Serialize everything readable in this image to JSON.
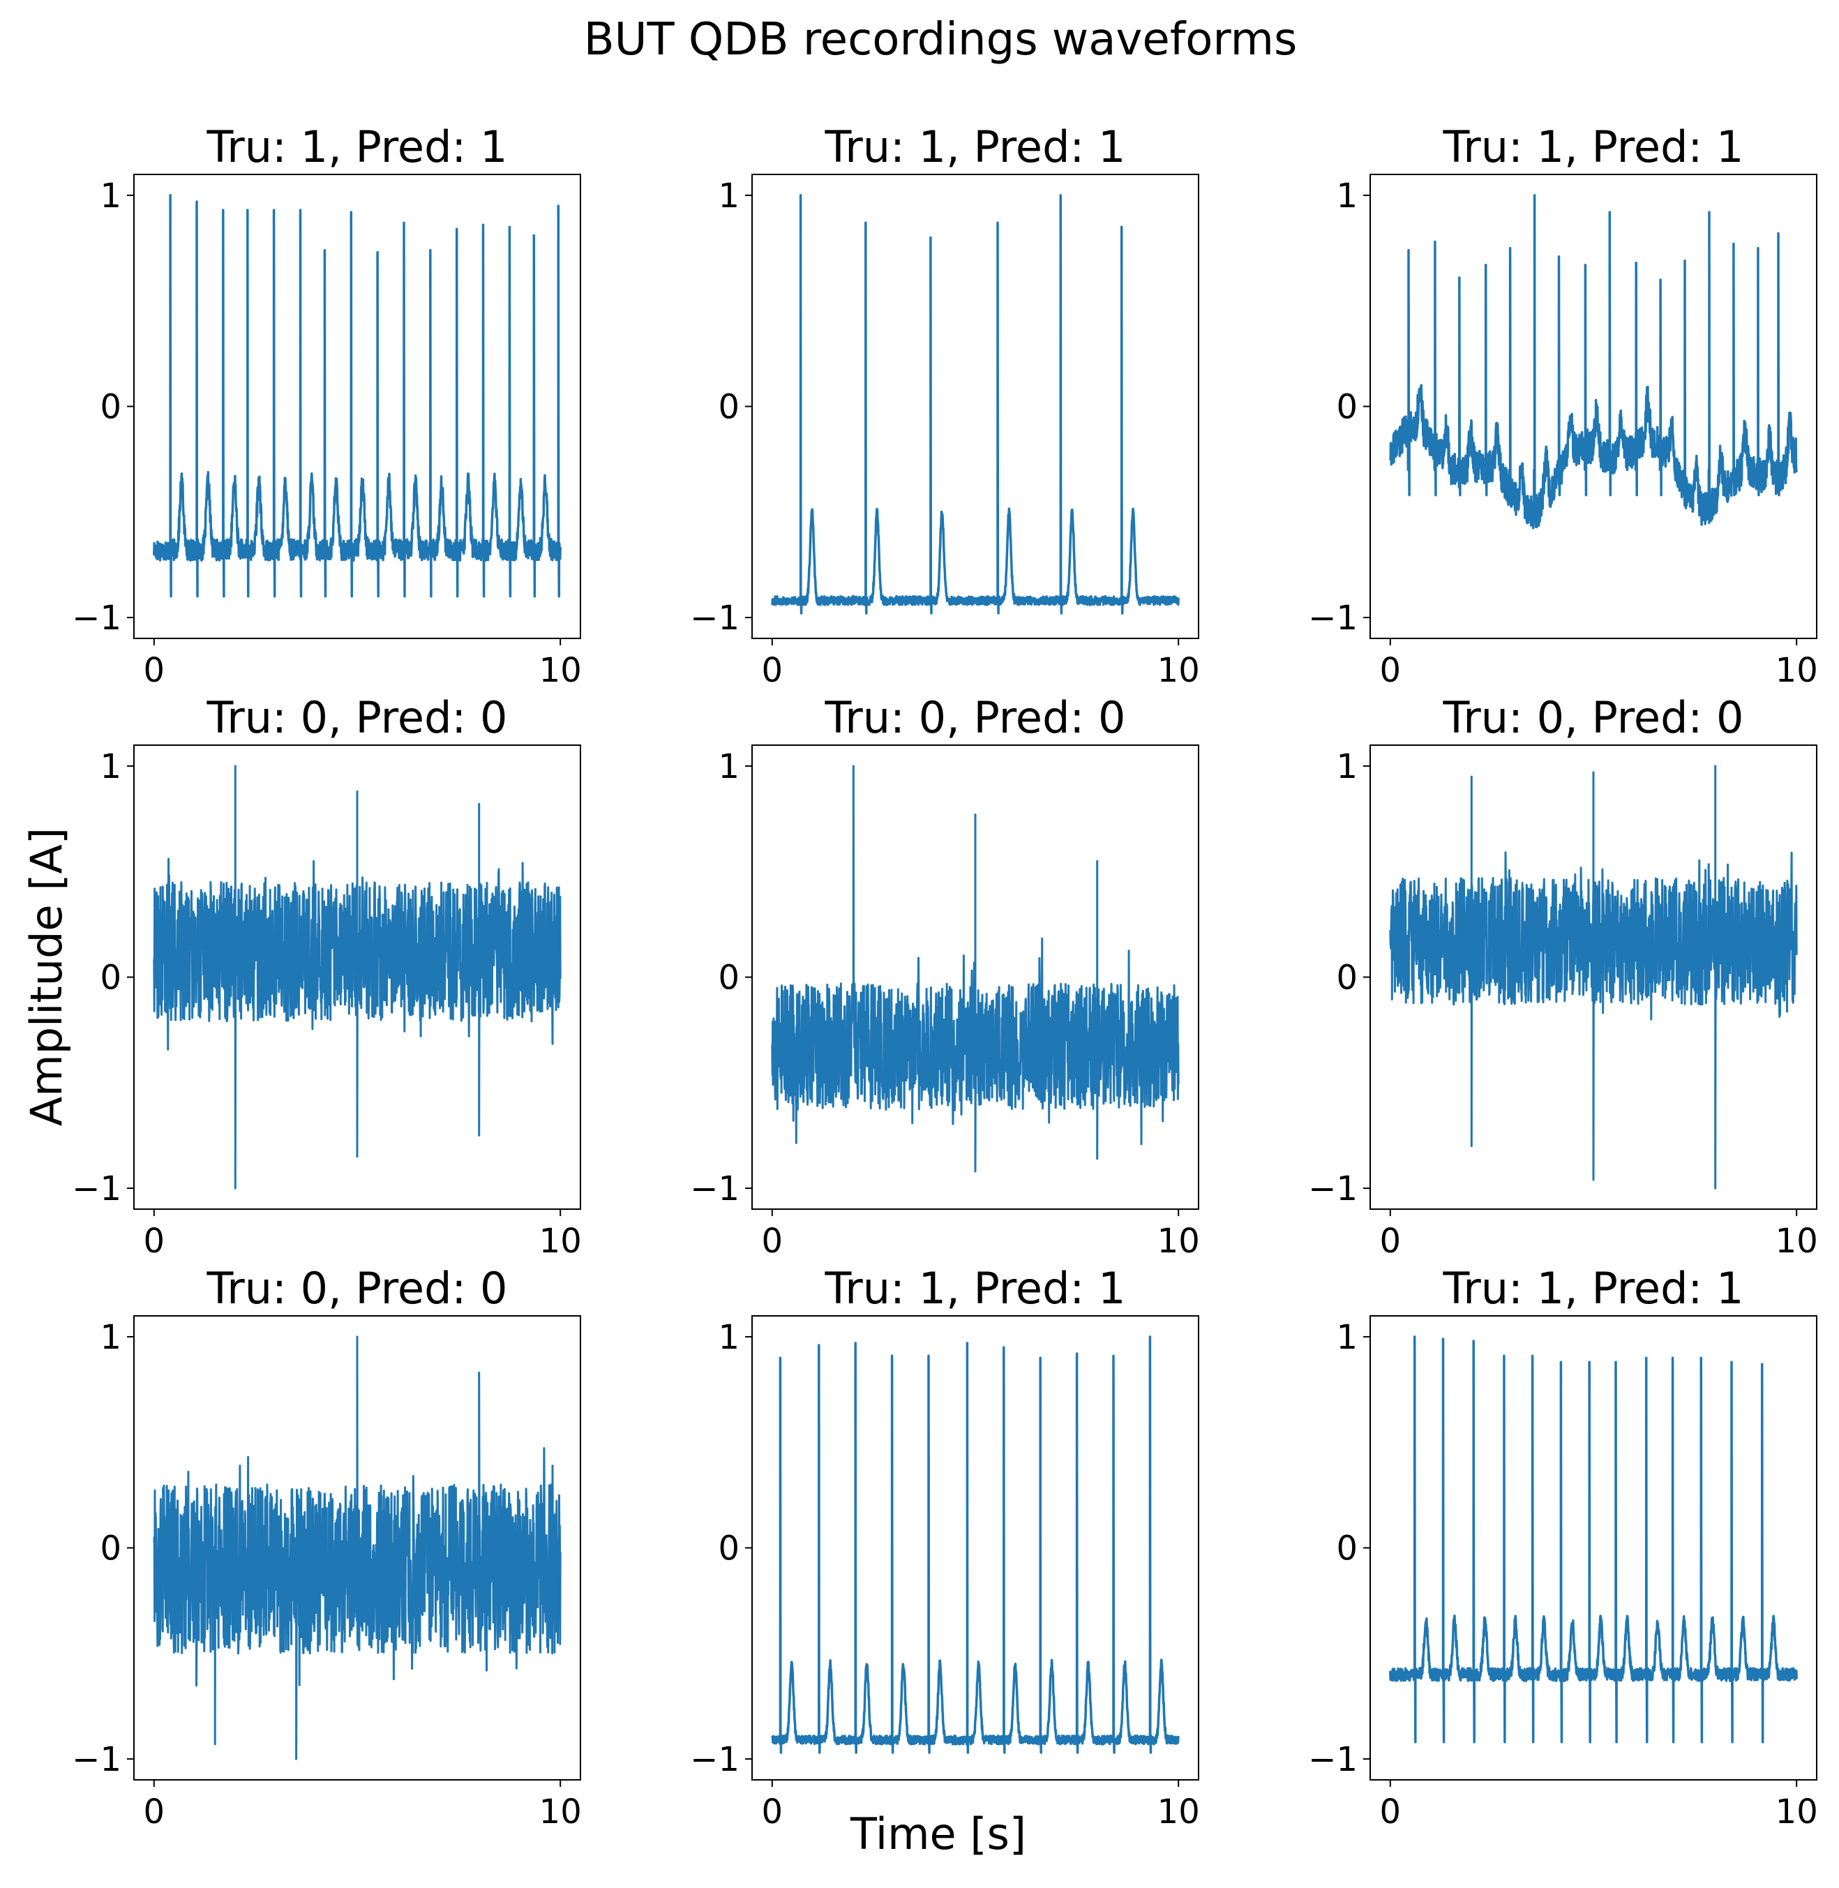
{
  "title": "BUT QDB recordings waveforms",
  "xlabel": "Time [s]",
  "ylabel": "Amplitude [A]",
  "line_color": "#1f77b4",
  "chart_data": [
    {
      "type": "line",
      "title": "Tru: 1, Pred: 1",
      "x_ticks": [
        "0",
        "10"
      ],
      "y_ticks": [
        "1",
        "0",
        "−1"
      ],
      "xlim": [
        0,
        10
      ],
      "ylim": [
        -1,
        1
      ],
      "kind": "ecg",
      "baseline": -0.68,
      "noise": 0.05,
      "peak_times": [
        0.4,
        1.05,
        1.7,
        2.3,
        2.95,
        3.6,
        4.2,
        4.85,
        5.5,
        6.15,
        6.8,
        7.45,
        8.1,
        8.75,
        9.35,
        9.95
      ],
      "peak_heights": [
        1.0,
        0.97,
        0.93,
        0.93,
        0.93,
        0.93,
        0.74,
        0.92,
        0.73,
        0.87,
        0.74,
        0.84,
        0.86,
        0.85,
        0.81,
        0.95
      ],
      "t_wave": 0.32,
      "s_depth": 0.22
    },
    {
      "type": "line",
      "title": "Tru: 1, Pred: 1",
      "x_ticks": [
        "0",
        "10"
      ],
      "y_ticks": [
        "1",
        "0",
        "−1"
      ],
      "xlim": [
        0,
        10
      ],
      "ylim": [
        -1,
        1
      ],
      "kind": "ecg",
      "baseline": -0.92,
      "noise": 0.02,
      "peak_times": [
        0.7,
        2.3,
        3.9,
        5.55,
        7.1,
        8.6
      ],
      "peak_heights": [
        1.0,
        0.87,
        0.8,
        0.87,
        1.0,
        0.85
      ],
      "t_wave": 0.42,
      "s_depth": 0.06
    },
    {
      "type": "line",
      "title": "Tru: 1, Pred: 1",
      "x_ticks": [
        "0",
        "10"
      ],
      "y_ticks": [
        "1",
        "0",
        "−1"
      ],
      "xlim": [
        0,
        10
      ],
      "ylim": [
        -1,
        1
      ],
      "kind": "ecg",
      "baseline": -0.3,
      "noise": 0.08,
      "wander": 0.13,
      "peak_times": [
        0.45,
        1.1,
        1.7,
        2.35,
        2.95,
        3.55,
        4.15,
        4.8,
        5.4,
        6.05,
        6.65,
        7.25,
        7.85,
        8.45,
        9.05,
        9.55
      ],
      "peak_heights": [
        0.74,
        0.78,
        0.61,
        0.67,
        0.75,
        1.0,
        0.71,
        0.67,
        0.92,
        0.68,
        0.6,
        0.69,
        0.92,
        0.77,
        0.75,
        0.82
      ],
      "t_wave": 0.18,
      "s_depth": 0.12
    },
    {
      "type": "line",
      "title": "Tru: 0, Pred: 0",
      "x_ticks": [
        "0",
        "10"
      ],
      "y_ticks": [
        "1",
        "0",
        "−1"
      ],
      "xlim": [
        0,
        10
      ],
      "ylim": [
        -1,
        1
      ],
      "kind": "noise",
      "center": 0.12,
      "half_range": 0.33,
      "spikes": [
        [
          2.0,
          1.0
        ],
        [
          5.0,
          0.88
        ],
        [
          8.0,
          0.82
        ],
        [
          2.0,
          -1.0
        ],
        [
          5.0,
          -0.85
        ],
        [
          8.0,
          -0.75
        ]
      ]
    },
    {
      "type": "line",
      "title": "Tru: 0, Pred: 0",
      "x_ticks": [
        "0",
        "10"
      ],
      "y_ticks": [
        "1",
        "0",
        "−1"
      ],
      "xlim": [
        0,
        10
      ],
      "ylim": [
        -1,
        1
      ],
      "kind": "noise",
      "center": -0.33,
      "half_range": 0.3,
      "spikes": [
        [
          2.0,
          1.0
        ],
        [
          5.0,
          0.77
        ],
        [
          8.0,
          0.55
        ],
        [
          5.0,
          -0.92
        ],
        [
          8.0,
          -0.86
        ]
      ]
    },
    {
      "type": "line",
      "title": "Tru: 0, Pred: 0",
      "x_ticks": [
        "0",
        "10"
      ],
      "y_ticks": [
        "1",
        "0",
        "−1"
      ],
      "xlim": [
        0,
        10
      ],
      "ylim": [
        -1,
        1
      ],
      "kind": "noise",
      "center": 0.17,
      "half_range": 0.3,
      "spikes": [
        [
          2.0,
          0.95
        ],
        [
          5.0,
          0.97
        ],
        [
          8.0,
          1.0
        ],
        [
          2.0,
          -0.8
        ],
        [
          5.0,
          -0.96
        ],
        [
          8.0,
          -1.0
        ]
      ]
    },
    {
      "type": "line",
      "title": "Tru: 0, Pred: 0",
      "x_ticks": [
        "0",
        "10"
      ],
      "y_ticks": [
        "1",
        "0",
        "−1"
      ],
      "xlim": [
        0,
        10
      ],
      "ylim": [
        -1,
        1
      ],
      "kind": "noise",
      "center": -0.1,
      "half_range": 0.4,
      "spikes": [
        [
          5.0,
          1.0
        ],
        [
          8.0,
          0.83
        ],
        [
          3.5,
          -1.0
        ],
        [
          1.5,
          -0.93
        ]
      ]
    },
    {
      "type": "line",
      "title": "Tru: 1, Pred: 1",
      "x_ticks": [
        "0",
        "10"
      ],
      "y_ticks": [
        "1",
        "0",
        "−1"
      ],
      "xlim": [
        0,
        10
      ],
      "ylim": [
        -1,
        1
      ],
      "kind": "ecg",
      "baseline": -0.91,
      "noise": 0.02,
      "peak_times": [
        0.2,
        1.15,
        2.05,
        2.95,
        3.85,
        4.8,
        5.7,
        6.6,
        7.5,
        8.4,
        9.3
      ],
      "peak_heights": [
        0.9,
        0.96,
        0.97,
        0.91,
        0.91,
        0.97,
        0.95,
        0.9,
        0.92,
        0.91,
        1.0
      ],
      "t_wave": 0.36,
      "s_depth": 0.06
    },
    {
      "type": "line",
      "title": "Tru: 1, Pred: 1",
      "x_ticks": [
        "0",
        "10"
      ],
      "y_ticks": [
        "1",
        "0",
        "−1"
      ],
      "xlim": [
        0,
        10
      ],
      "ylim": [
        -1,
        1
      ],
      "kind": "ecg",
      "baseline": -0.6,
      "noise": 0.03,
      "peak_times": [
        0.6,
        1.3,
        2.05,
        2.8,
        3.5,
        4.2,
        4.9,
        5.55,
        6.3,
        6.95,
        7.65,
        8.4,
        9.15
      ],
      "peak_heights": [
        1.0,
        0.99,
        0.98,
        0.91,
        0.91,
        0.88,
        0.88,
        0.88,
        0.9,
        0.9,
        0.9,
        0.88,
        0.87
      ],
      "t_wave": 0.25,
      "s_depth": 0.32
    }
  ]
}
